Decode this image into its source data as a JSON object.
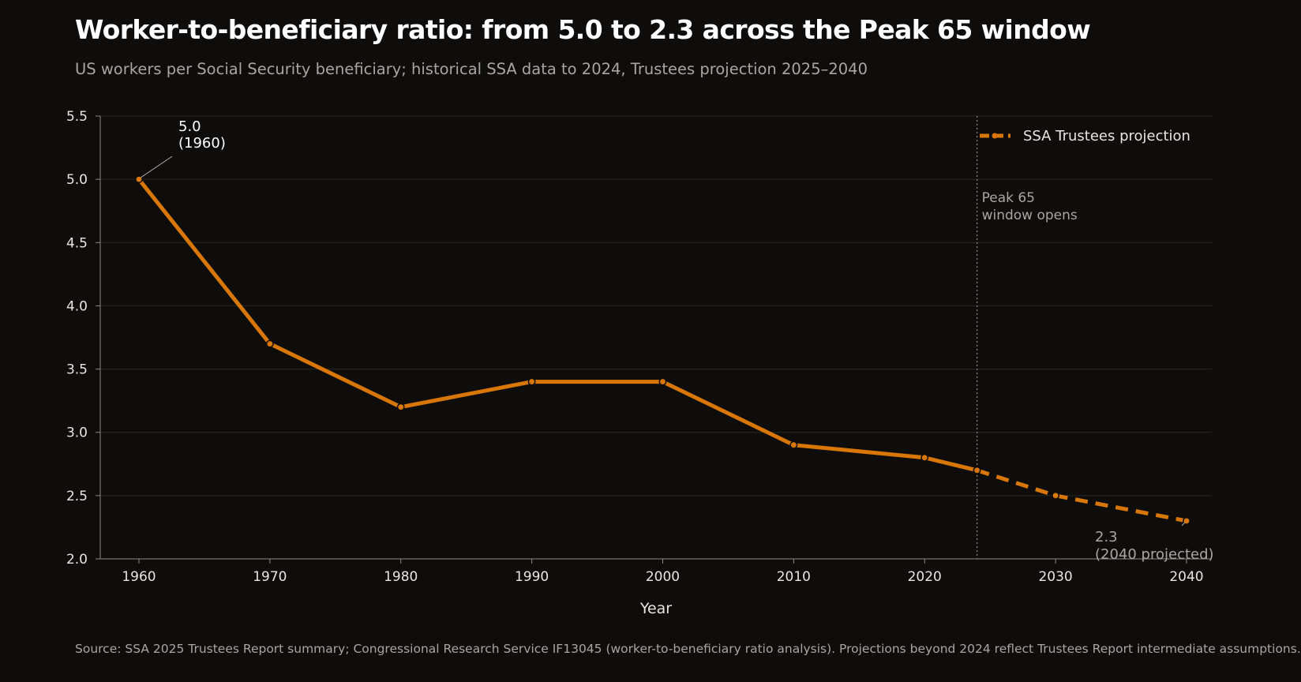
{
  "title": "Worker-to-beneficiary ratio: from 5.0 to 2.3 across the Peak 65 window",
  "subtitle": "US workers per Social Security beneficiary; historical SSA data to 2024, Trustees projection 2025–2040",
  "source": "Source: SSA 2025 Trustees Report summary; Congressional Research Service IF13045 (worker-to-beneficiary ratio analysis). Projections beyond 2024 reflect Trustees Report intermediate assumptions.",
  "colors": {
    "accent": "#d97706",
    "background": "#0e0d0b",
    "text": "#ffffff",
    "muted": "#a9a6a0"
  },
  "chart_data": {
    "type": "line",
    "xlabel": "Year",
    "ylabel": "",
    "xlim": [
      1960,
      2040
    ],
    "ylim": [
      2.0,
      5.5
    ],
    "x_ticks": [
      1960,
      1970,
      1980,
      1990,
      2000,
      2010,
      2020,
      2030,
      2040
    ],
    "y_ticks": [
      "2.0",
      "2.5",
      "3.0",
      "3.5",
      "4.0",
      "4.5",
      "5.0",
      "5.5"
    ],
    "grid": true,
    "legend_position": "top-right",
    "series": [
      {
        "name": "",
        "style": "solid",
        "x": [
          1960,
          1970,
          1980,
          1990,
          2000,
          2010,
          2020,
          2024
        ],
        "y": [
          5.0,
          3.7,
          3.2,
          3.4,
          3.4,
          2.9,
          2.8,
          2.7
        ]
      },
      {
        "name": "SSA Trustees projection",
        "style": "dashed",
        "x": [
          2024,
          2030,
          2040
        ],
        "y": [
          2.7,
          2.5,
          2.3
        ]
      }
    ],
    "vertical_marker": {
      "x": 2024,
      "label_line1": "Peak 65",
      "label_line2": "window opens"
    },
    "annotations": [
      {
        "line1": "5.0",
        "line2": "(1960)",
        "x": 1960,
        "y": 5.0
      },
      {
        "line1": "2.3",
        "line2": "(2040 projected)",
        "x": 2040,
        "y": 2.3
      }
    ]
  }
}
